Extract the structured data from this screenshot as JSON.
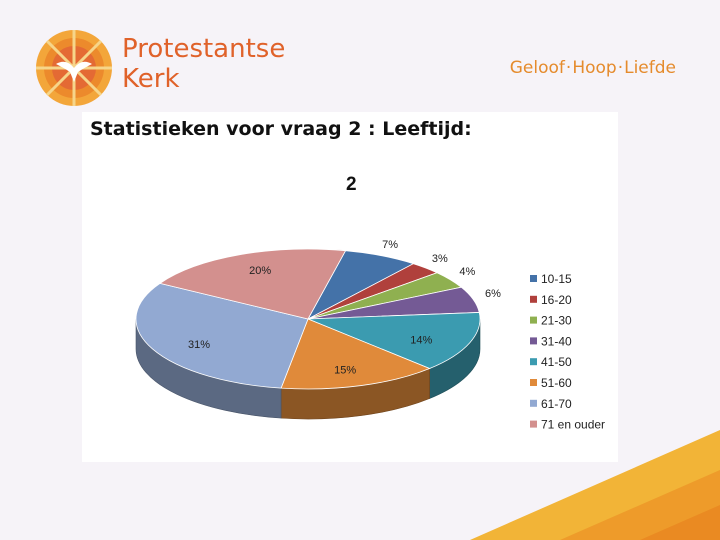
{
  "brand": {
    "name_line1": "Protestantse",
    "name_line2": "Kerk",
    "logo_icon": "dove-sun-icon",
    "tagline_parts": [
      "Geloof",
      "Hoop",
      "Liefde"
    ],
    "tagline_separator": "·",
    "accent": "#e0622a"
  },
  "slide": {
    "heading": "Statistieken voor vraag 2 : Leeftijd:",
    "question_number": "2"
  },
  "chart_data": {
    "type": "pie",
    "title": "",
    "series": [
      {
        "name": "10-15",
        "value": 7,
        "label": "7%",
        "color": "#4472a8"
      },
      {
        "name": "16-20",
        "value": 3,
        "label": "3%",
        "color": "#b0403c"
      },
      {
        "name": "21-30",
        "value": 4,
        "label": "4%",
        "color": "#8fb050"
      },
      {
        "name": "31-40",
        "value": 6,
        "label": "6%",
        "color": "#745a95"
      },
      {
        "name": "41-50",
        "value": 14,
        "label": "14%",
        "color": "#3b9bb0"
      },
      {
        "name": "51-60",
        "value": 15,
        "label": "15%",
        "color": "#e08a3a"
      },
      {
        "name": "61-70",
        "value": 31,
        "label": "31%",
        "color": "#92a9d2"
      },
      {
        "name": "71 en ouder",
        "value": 20,
        "label": "20%",
        "color": "#d3908e"
      }
    ],
    "legend_position": "right",
    "style": "3d"
  }
}
